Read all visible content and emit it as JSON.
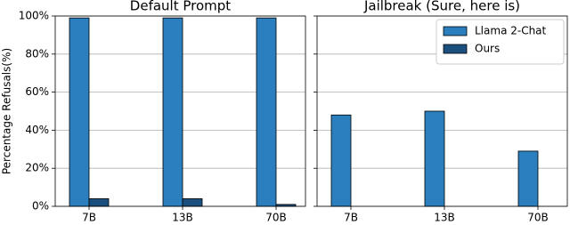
{
  "chart_data": [
    {
      "type": "bar",
      "title": "Default Prompt",
      "ylabel": "Percentage Refusals(%)",
      "categories": [
        "7B",
        "13B",
        "70B"
      ],
      "series": [
        {
          "color": "#2c7fbf",
          "values": [
            99,
            99,
            99
          ]
        },
        {
          "color": "#1b4f7e",
          "values": [
            4,
            4,
            1
          ]
        }
      ],
      "ylim": [
        0,
        100
      ],
      "yticks": [
        {
          "value": 0,
          "label": "0%"
        },
        {
          "value": 20,
          "label": "20%"
        },
        {
          "value": 40,
          "label": "40%"
        },
        {
          "value": 60,
          "label": "60%"
        },
        {
          "value": 80,
          "label": "80%"
        },
        {
          "value": 100,
          "label": "100%"
        }
      ],
      "grid": true
    },
    {
      "type": "bar",
      "title": "Jailbreak (Sure, here is)",
      "categories": [
        "7B",
        "13B",
        "70B"
      ],
      "series": [
        {
          "name": "Llama 2-Chat",
          "color": "#2c7fbf",
          "values": [
            48,
            50,
            29
          ]
        },
        {
          "name": "Ours",
          "color": "#1b4f7e",
          "values": [
            0,
            0,
            0
          ]
        }
      ],
      "ylim": [
        0,
        100
      ],
      "yticks": [
        0,
        20,
        40,
        60,
        80,
        100
      ],
      "grid": true,
      "legend": "upper right"
    }
  ]
}
